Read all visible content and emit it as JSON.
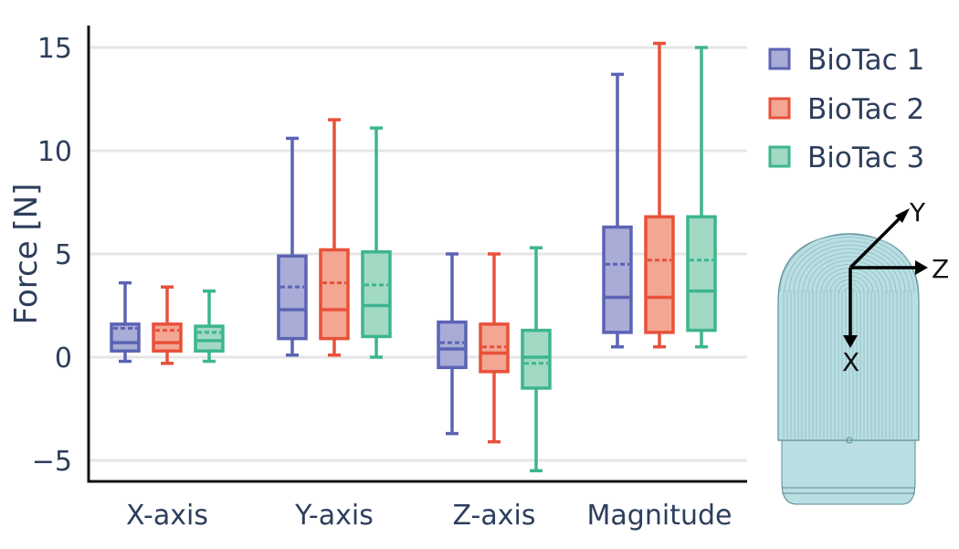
{
  "chart_data": {
    "type": "box",
    "categories": [
      "X-axis",
      "Y-axis",
      "Z-axis",
      "Magnitude"
    ],
    "ylabel": "Force [N]",
    "ylim": [
      -6,
      16
    ],
    "yticks": [
      15,
      10,
      5,
      0,
      -5
    ],
    "ytick_labels": [
      "15",
      "10",
      "5",
      "0",
      "−5"
    ],
    "grid": true,
    "legend_position": "top-right",
    "series": [
      {
        "name": "BioTac 1",
        "color": "#5b63b5",
        "fill": "#a8acd6",
        "boxes": [
          {
            "whisker_low": -0.2,
            "q1": 0.3,
            "median": 0.7,
            "q3": 1.6,
            "whisker_high": 3.6,
            "mean": 1.4
          },
          {
            "whisker_low": 0.1,
            "q1": 0.9,
            "median": 2.3,
            "q3": 4.9,
            "whisker_high": 10.6,
            "mean": 3.4
          },
          {
            "whisker_low": -3.7,
            "q1": -0.5,
            "median": 0.4,
            "q3": 1.7,
            "whisker_high": 5.0,
            "mean": 0.7
          },
          {
            "whisker_low": 0.5,
            "q1": 1.2,
            "median": 2.9,
            "q3": 6.3,
            "whisker_high": 13.7,
            "mean": 4.5
          }
        ]
      },
      {
        "name": "BioTac 2",
        "color": "#e8513a",
        "fill": "#f3a692",
        "boxes": [
          {
            "whisker_low": -0.3,
            "q1": 0.3,
            "median": 0.7,
            "q3": 1.6,
            "whisker_high": 3.4,
            "mean": 1.3
          },
          {
            "whisker_low": 0.1,
            "q1": 0.9,
            "median": 2.3,
            "q3": 5.2,
            "whisker_high": 11.5,
            "mean": 3.6
          },
          {
            "whisker_low": -4.1,
            "q1": -0.7,
            "median": 0.2,
            "q3": 1.6,
            "whisker_high": 5.0,
            "mean": 0.5
          },
          {
            "whisker_low": 0.5,
            "q1": 1.2,
            "median": 2.9,
            "q3": 6.8,
            "whisker_high": 15.2,
            "mean": 4.7
          }
        ]
      },
      {
        "name": "BioTac 3",
        "color": "#3db58e",
        "fill": "#a1d9c3",
        "boxes": [
          {
            "whisker_low": -0.2,
            "q1": 0.3,
            "median": 0.8,
            "q3": 1.5,
            "whisker_high": 3.2,
            "mean": 1.2
          },
          {
            "whisker_low": 0.0,
            "q1": 1.0,
            "median": 2.5,
            "q3": 5.1,
            "whisker_high": 11.1,
            "mean": 3.5
          },
          {
            "whisker_low": -5.5,
            "q1": -1.5,
            "median": 0.0,
            "q3": 1.3,
            "whisker_high": 5.3,
            "mean": -0.3
          },
          {
            "whisker_low": 0.5,
            "q1": 1.3,
            "median": 3.2,
            "q3": 6.8,
            "whisker_high": 15.0,
            "mean": 4.7
          }
        ]
      }
    ]
  },
  "inset": {
    "object": "BioTac fingertip sensor",
    "axis_labels": {
      "x": "X",
      "y": "Y",
      "z": "Z"
    }
  }
}
